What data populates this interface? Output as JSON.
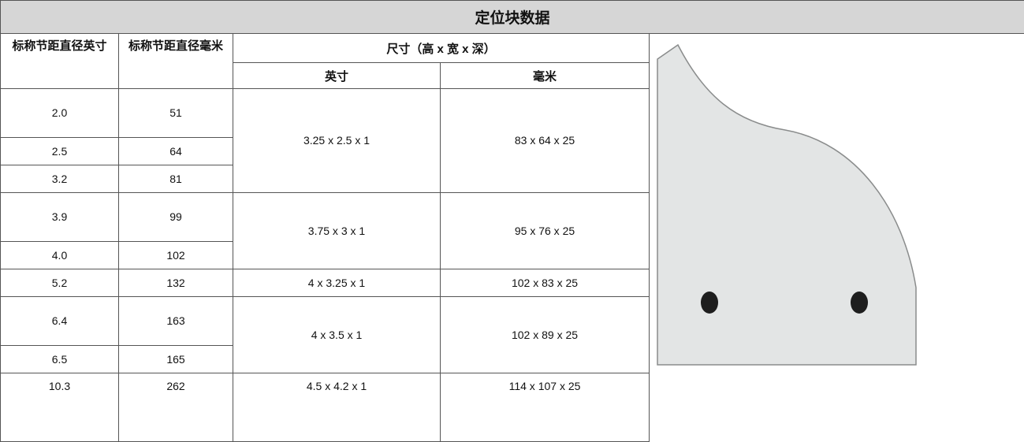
{
  "title": "定位块数据",
  "headers": {
    "pitch_in": "标称节距直径英寸",
    "pitch_mm": "标称节距直径毫米",
    "dims": "尺寸（高 x 宽 x 深）",
    "dims_in": "英寸",
    "dims_mm": "毫米"
  },
  "groups": [
    {
      "size_in": "3.25 x 2.5 x 1",
      "size_mm": "83 x 64 x 25",
      "rows": [
        [
          "2.0",
          "51"
        ],
        [
          "2.5",
          "64"
        ],
        [
          "3.2",
          "81"
        ]
      ]
    },
    {
      "size_in": "3.75 x 3 x 1",
      "size_mm": "95 x 76 x 25",
      "rows": [
        [
          "3.9",
          "99"
        ],
        [
          "4.0",
          "102"
        ]
      ]
    },
    {
      "size_in": "4 x 3.25 x 1",
      "size_mm": "102 x 83 x 25",
      "rows": [
        [
          "5.2",
          "132"
        ]
      ]
    },
    {
      "size_in": "4 x 3.5 x 1",
      "size_mm": "102 x 89 x 25",
      "rows": [
        [
          "6.4",
          "163"
        ],
        [
          "6.5",
          "165"
        ]
      ]
    },
    {
      "size_in": "4.5 x 4.2 x 1",
      "size_mm": "114 x 107 x 25",
      "rows": [
        [
          "10.3",
          "262"
        ]
      ]
    }
  ]
}
